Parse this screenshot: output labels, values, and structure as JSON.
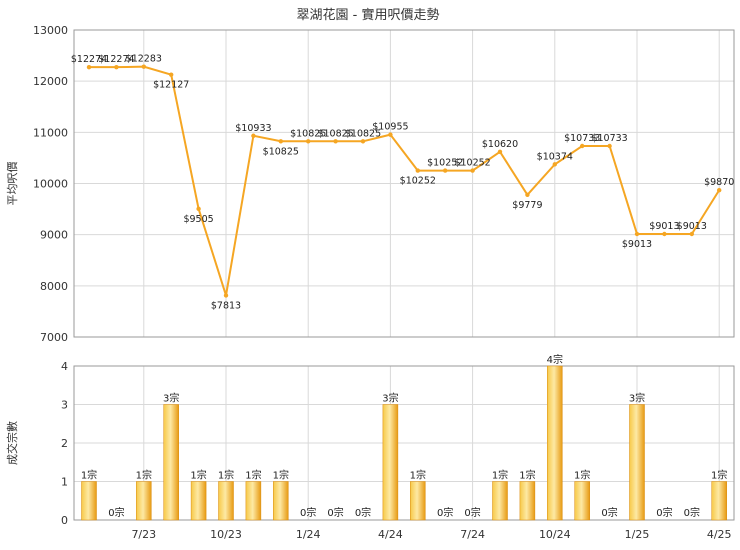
{
  "chart_data": [
    {
      "type": "line",
      "title": "翠湖花園 - 實用呎價走勢",
      "ylabel": "平均呎價",
      "ylim": [
        7000,
        13000
      ],
      "yticks": [
        7000,
        8000,
        9000,
        10000,
        11000,
        12000,
        13000
      ],
      "grid": true,
      "color": "#f5a623",
      "points": [
        {
          "i": 0,
          "y": 12274,
          "label": "$12274"
        },
        {
          "i": 1,
          "y": 12274,
          "label": "$12274"
        },
        {
          "i": 2,
          "y": 12283,
          "label": "$12283"
        },
        {
          "i": 3,
          "y": 12127,
          "label": "$12127"
        },
        {
          "i": 4,
          "y": 9505,
          "label": "$9505"
        },
        {
          "i": 5,
          "y": 7813,
          "label": "$7813"
        },
        {
          "i": 6,
          "y": 10933,
          "label": "$10933"
        },
        {
          "i": 7,
          "y": 10825,
          "label": "$10825"
        },
        {
          "i": 8,
          "y": 10825,
          "label": "$10825"
        },
        {
          "i": 9,
          "y": 10825,
          "label": "$10825"
        },
        {
          "i": 10,
          "y": 10825,
          "label": "$10825"
        },
        {
          "i": 11,
          "y": 10955,
          "label": "$10955"
        },
        {
          "i": 12,
          "y": 10252,
          "label": "$10252"
        },
        {
          "i": 13,
          "y": 10252,
          "label": "$10252"
        },
        {
          "i": 14,
          "y": 10252,
          "label": "$10252"
        },
        {
          "i": 15,
          "y": 10620,
          "label": "$10620"
        },
        {
          "i": 16,
          "y": 9779,
          "label": "$9779"
        },
        {
          "i": 17,
          "y": 10374,
          "label": "$10374"
        },
        {
          "i": 18,
          "y": 10733,
          "label": "$10733"
        },
        {
          "i": 19,
          "y": 10733,
          "label": "$10733"
        },
        {
          "i": 20,
          "y": 9013,
          "label": "$9013"
        },
        {
          "i": 21,
          "y": 9013,
          "label": "$9013"
        },
        {
          "i": 22,
          "y": 9013,
          "label": "$9013"
        },
        {
          "i": 23,
          "y": 9870,
          "label": "$9870"
        }
      ]
    },
    {
      "type": "bar",
      "ylabel": "成交宗數",
      "ylim": [
        0,
        4
      ],
      "yticks": [
        0,
        1,
        2,
        3,
        4
      ],
      "grid": true,
      "color": "#f5a623",
      "x_tick_labels": [
        "7/23",
        "10/23",
        "1/24",
        "4/24",
        "7/24",
        "10/24",
        "1/25",
        "4/25"
      ],
      "x_tick_indices": [
        2,
        5,
        8,
        11,
        14,
        17,
        20,
        23
      ],
      "values": [
        1,
        0,
        1,
        3,
        1,
        1,
        1,
        1,
        0,
        0,
        0,
        3,
        1,
        0,
        0,
        1,
        1,
        4,
        1,
        0,
        3,
        0,
        0,
        1
      ],
      "value_labels": [
        "1宗",
        "0宗",
        "1宗",
        "3宗",
        "1宗",
        "1宗",
        "1宗",
        "1宗",
        "0宗",
        "0宗",
        "0宗",
        "3宗",
        "1宗",
        "0宗",
        "0宗",
        "1宗",
        "1宗",
        "4宗",
        "1宗",
        "0宗",
        "3宗",
        "0宗",
        "0宗",
        "1宗"
      ]
    }
  ]
}
